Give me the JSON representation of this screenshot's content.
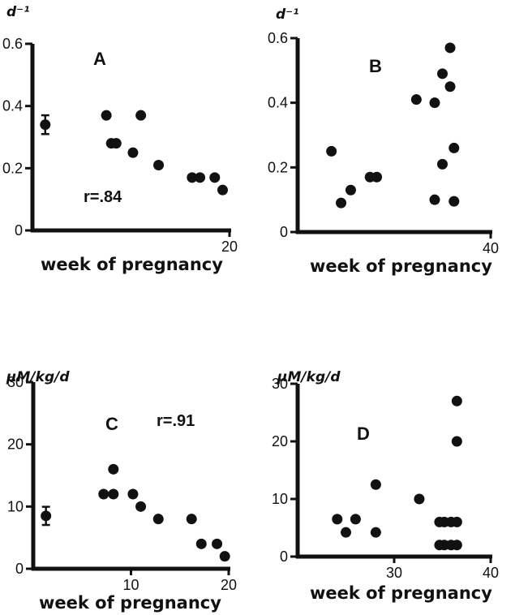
{
  "chart_data": [
    {
      "type": "scatter",
      "panel_label": "A",
      "ylabel": "d⁻¹",
      "xlabel": "week of pregnancy",
      "annotation": "r=.84",
      "xlim": [
        0,
        20
      ],
      "ylim": [
        0,
        0.6
      ],
      "x_ticks": [
        "20"
      ],
      "y_ticks": [
        "0",
        "0.2",
        "0.4",
        "0.6"
      ],
      "points": [
        {
          "x": 7.5,
          "y": 0.37
        },
        {
          "x": 11,
          "y": 0.37
        },
        {
          "x": 8,
          "y": 0.28
        },
        {
          "x": 8.5,
          "y": 0.28
        },
        {
          "x": 10.2,
          "y": 0.25
        },
        {
          "x": 12.8,
          "y": 0.21
        },
        {
          "x": 16.2,
          "y": 0.17
        },
        {
          "x": 17,
          "y": 0.17
        },
        {
          "x": 18.5,
          "y": 0.17
        },
        {
          "x": 19.3,
          "y": 0.13
        }
      ],
      "error_points": [
        {
          "x": 1.3,
          "y": 0.34,
          "err": 0.025
        }
      ]
    },
    {
      "type": "scatter",
      "panel_label": "B",
      "ylabel": "d⁻¹",
      "xlabel": "week of pregnancy",
      "annotation": "",
      "xlim": [
        20,
        40
      ],
      "ylim": [
        0,
        0.6
      ],
      "x_ticks": [
        "40"
      ],
      "y_ticks": [
        "0",
        "0.2",
        "0.4",
        "0.6"
      ],
      "points": [
        {
          "x": 23.5,
          "y": 0.25
        },
        {
          "x": 24.5,
          "y": 0.09
        },
        {
          "x": 25.5,
          "y": 0.13
        },
        {
          "x": 27.5,
          "y": 0.17
        },
        {
          "x": 28.2,
          "y": 0.17
        },
        {
          "x": 32.3,
          "y": 0.41
        },
        {
          "x": 34.2,
          "y": 0.1
        },
        {
          "x": 34.2,
          "y": 0.4
        },
        {
          "x": 35,
          "y": 0.49
        },
        {
          "x": 35,
          "y": 0.21
        },
        {
          "x": 35.8,
          "y": 0.57
        },
        {
          "x": 35.8,
          "y": 0.45
        },
        {
          "x": 36.2,
          "y": 0.26
        },
        {
          "x": 36.2,
          "y": 0.095
        }
      ],
      "error_points": []
    },
    {
      "type": "scatter",
      "panel_label": "C",
      "ylabel": "μM/kg/d",
      "xlabel": "week of pregnancy",
      "annotation": "r=.91",
      "xlim": [
        0,
        20
      ],
      "ylim": [
        0,
        30
      ],
      "x_ticks": [
        "10",
        "20"
      ],
      "y_ticks": [
        "0",
        "10",
        "20",
        "30"
      ],
      "points": [
        {
          "x": 7.2,
          "y": 12
        },
        {
          "x": 8.2,
          "y": 12
        },
        {
          "x": 8.2,
          "y": 16
        },
        {
          "x": 10.2,
          "y": 12
        },
        {
          "x": 11,
          "y": 10
        },
        {
          "x": 12.8,
          "y": 8
        },
        {
          "x": 16.2,
          "y": 8
        },
        {
          "x": 17.2,
          "y": 4
        },
        {
          "x": 18.8,
          "y": 4
        },
        {
          "x": 19.6,
          "y": 2
        }
      ],
      "error_points": [
        {
          "x": 1.3,
          "y": 8.5,
          "err": 1.2
        }
      ]
    },
    {
      "type": "scatter",
      "panel_label": "D",
      "ylabel": "μM/kg/d",
      "xlabel": "week of pregnancy",
      "annotation": "",
      "xlim": [
        20,
        40
      ],
      "ylim": [
        0,
        30
      ],
      "x_ticks": [
        "30",
        "40"
      ],
      "y_ticks": [
        "0",
        "10",
        "20",
        "30"
      ],
      "points": [
        {
          "x": 24.1,
          "y": 6.5
        },
        {
          "x": 25,
          "y": 4.2
        },
        {
          "x": 26,
          "y": 6.5
        },
        {
          "x": 28.1,
          "y": 12.5
        },
        {
          "x": 28.1,
          "y": 4.2
        },
        {
          "x": 32.6,
          "y": 10
        },
        {
          "x": 34.7,
          "y": 6
        },
        {
          "x": 35.2,
          "y": 6
        },
        {
          "x": 35.9,
          "y": 6
        },
        {
          "x": 34.7,
          "y": 2
        },
        {
          "x": 35.2,
          "y": 2
        },
        {
          "x": 35.9,
          "y": 2
        },
        {
          "x": 36.5,
          "y": 6
        },
        {
          "x": 36.5,
          "y": 2
        },
        {
          "x": 36.5,
          "y": 20
        },
        {
          "x": 36.5,
          "y": 27
        }
      ],
      "error_points": []
    }
  ]
}
